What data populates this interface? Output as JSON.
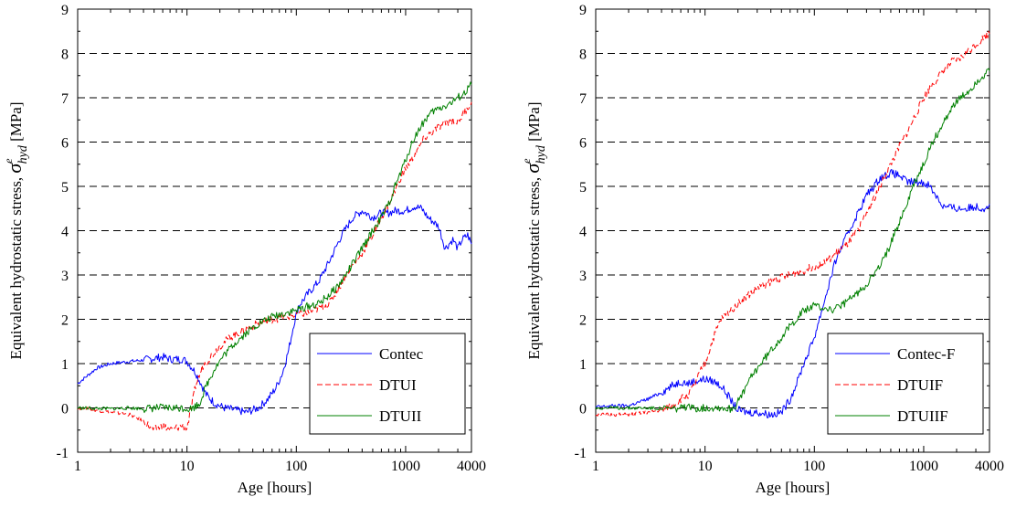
{
  "chart_data": [
    {
      "type": "line",
      "xscale": "log",
      "xlim": [
        1,
        4000
      ],
      "ylim": [
        -1,
        9
      ],
      "xticks": [
        "1",
        "10",
        "100",
        "1000",
        "4000"
      ],
      "yticks": [
        "-1",
        "0",
        "1",
        "2",
        "3",
        "4",
        "5",
        "6",
        "7",
        "8",
        "9"
      ],
      "xlabel": "Age [hours]",
      "ylabel": {
        "main": "Equivalent hydrostatic stress,",
        "symbol": "σ",
        "sup": "e",
        "sub": "hyd",
        "unit": "[MPa]"
      },
      "grid": "horizontal-dashed",
      "legend": "bottom-right",
      "series": [
        {
          "name": "Contec",
          "color": "#0000ff",
          "dash": "solid",
          "points": [
            [
              1,
              0.55
            ],
            [
              1.5,
              0.9
            ],
            [
              2,
              1.0
            ],
            [
              3,
              1.05
            ],
            [
              4,
              1.08
            ],
            [
              5,
              1.12
            ],
            [
              6,
              1.15
            ],
            [
              7,
              1.1
            ],
            [
              8,
              1.1
            ],
            [
              9,
              1.1
            ],
            [
              10,
              1.05
            ],
            [
              12,
              0.8
            ],
            [
              15,
              0.3
            ],
            [
              18,
              0.1
            ],
            [
              22,
              0.0
            ],
            [
              28,
              -0.05
            ],
            [
              35,
              -0.1
            ],
            [
              45,
              0.0
            ],
            [
              55,
              0.2
            ],
            [
              65,
              0.45
            ],
            [
              75,
              0.8
            ],
            [
              85,
              1.3
            ],
            [
              95,
              1.9
            ],
            [
              105,
              2.3
            ],
            [
              130,
              2.6
            ],
            [
              160,
              2.85
            ],
            [
              200,
              3.3
            ],
            [
              260,
              3.9
            ],
            [
              330,
              4.3
            ],
            [
              400,
              4.45
            ],
            [
              500,
              4.3
            ],
            [
              600,
              4.4
            ],
            [
              700,
              4.4
            ],
            [
              800,
              4.45
            ],
            [
              1000,
              4.45
            ],
            [
              1200,
              4.55
            ],
            [
              1400,
              4.5
            ],
            [
              1600,
              4.3
            ],
            [
              2000,
              4.1
            ],
            [
              2300,
              3.6
            ],
            [
              2700,
              3.8
            ],
            [
              3000,
              3.6
            ],
            [
              3300,
              3.8
            ],
            [
              3700,
              3.9
            ],
            [
              4000,
              3.7
            ]
          ]
        },
        {
          "name": "DTUI",
          "color": "#ff0000",
          "dash": "dashed",
          "points": [
            [
              1,
              0.0
            ],
            [
              1.5,
              -0.05
            ],
            [
              2,
              -0.1
            ],
            [
              3,
              -0.15
            ],
            [
              4,
              -0.3
            ],
            [
              5,
              -0.5
            ],
            [
              6,
              -0.4
            ],
            [
              7,
              -0.5
            ],
            [
              8,
              -0.45
            ],
            [
              9,
              -0.4
            ],
            [
              10,
              -0.45
            ],
            [
              11,
              0.0
            ],
            [
              12,
              0.5
            ],
            [
              14,
              0.95
            ],
            [
              17,
              1.2
            ],
            [
              20,
              1.4
            ],
            [
              25,
              1.6
            ],
            [
              30,
              1.7
            ],
            [
              40,
              1.85
            ],
            [
              50,
              1.95
            ],
            [
              60,
              2.0
            ],
            [
              80,
              2.05
            ],
            [
              100,
              2.1
            ],
            [
              130,
              2.15
            ],
            [
              160,
              2.25
            ],
            [
              200,
              2.35
            ],
            [
              250,
              2.75
            ],
            [
              300,
              3.1
            ],
            [
              400,
              3.5
            ],
            [
              500,
              3.9
            ],
            [
              600,
              4.3
            ],
            [
              700,
              4.6
            ],
            [
              800,
              4.9
            ],
            [
              900,
              5.2
            ],
            [
              1000,
              5.4
            ],
            [
              1200,
              5.7
            ],
            [
              1500,
              6.1
            ],
            [
              1800,
              6.25
            ],
            [
              2200,
              6.4
            ],
            [
              2700,
              6.5
            ],
            [
              3000,
              6.45
            ],
            [
              3500,
              6.7
            ],
            [
              4000,
              6.9
            ]
          ]
        },
        {
          "name": "DTUII",
          "color": "#008000",
          "dash": "solid",
          "points": [
            [
              1,
              0.0
            ],
            [
              2,
              -0.02
            ],
            [
              3,
              0.0
            ],
            [
              4,
              -0.02
            ],
            [
              5,
              0.0
            ],
            [
              7,
              0.0
            ],
            [
              9,
              0.0
            ],
            [
              11,
              -0.02
            ],
            [
              13,
              0.1
            ],
            [
              15,
              0.5
            ],
            [
              18,
              0.9
            ],
            [
              22,
              1.2
            ],
            [
              27,
              1.45
            ],
            [
              35,
              1.7
            ],
            [
              45,
              1.9
            ],
            [
              60,
              2.05
            ],
            [
              80,
              2.15
            ],
            [
              100,
              2.2
            ],
            [
              130,
              2.3
            ],
            [
              160,
              2.35
            ],
            [
              200,
              2.55
            ],
            [
              250,
              2.8
            ],
            [
              300,
              3.1
            ],
            [
              400,
              3.6
            ],
            [
              500,
              4.0
            ],
            [
              600,
              4.3
            ],
            [
              700,
              4.6
            ],
            [
              800,
              5.0
            ],
            [
              900,
              5.3
            ],
            [
              1000,
              5.6
            ],
            [
              1200,
              6.1
            ],
            [
              1500,
              6.5
            ],
            [
              1800,
              6.7
            ],
            [
              2200,
              6.8
            ],
            [
              2700,
              6.9
            ],
            [
              3000,
              7.0
            ],
            [
              3500,
              7.1
            ],
            [
              4000,
              7.3
            ]
          ]
        }
      ]
    },
    {
      "type": "line",
      "xscale": "log",
      "xlim": [
        1,
        4000
      ],
      "ylim": [
        -1,
        9
      ],
      "xticks": [
        "1",
        "10",
        "100",
        "1000",
        "4000"
      ],
      "yticks": [
        "-1",
        "0",
        "1",
        "2",
        "3",
        "4",
        "5",
        "6",
        "7",
        "8",
        "9"
      ],
      "xlabel": "Age [hours]",
      "ylabel": {
        "main": "Equivalent hydrostatic stress,",
        "symbol": "σ",
        "sup": "e",
        "sub": "hyd",
        "unit": "[MPa]"
      },
      "grid": "horizontal-dashed",
      "legend": "bottom-right",
      "series": [
        {
          "name": "Contec-F",
          "color": "#0000ff",
          "dash": "solid",
          "points": [
            [
              1,
              0.02
            ],
            [
              1.5,
              0.05
            ],
            [
              2,
              0.05
            ],
            [
              3,
              0.2
            ],
            [
              4,
              0.35
            ],
            [
              5,
              0.5
            ],
            [
              6,
              0.6
            ],
            [
              7,
              0.55
            ],
            [
              8,
              0.6
            ],
            [
              10,
              0.65
            ],
            [
              12,
              0.6
            ],
            [
              14,
              0.5
            ],
            [
              16,
              0.3
            ],
            [
              18,
              0.1
            ],
            [
              20,
              -0.05
            ],
            [
              25,
              -0.1
            ],
            [
              30,
              -0.1
            ],
            [
              40,
              -0.15
            ],
            [
              50,
              -0.1
            ],
            [
              60,
              0.2
            ],
            [
              70,
              0.6
            ],
            [
              80,
              1.0
            ],
            [
              90,
              1.3
            ],
            [
              100,
              1.6
            ],
            [
              120,
              2.3
            ],
            [
              140,
              2.9
            ],
            [
              160,
              3.4
            ],
            [
              200,
              3.9
            ],
            [
              250,
              4.4
            ],
            [
              300,
              4.8
            ],
            [
              350,
              5.0
            ],
            [
              400,
              5.2
            ],
            [
              500,
              5.3
            ],
            [
              600,
              5.25
            ],
            [
              700,
              5.1
            ],
            [
              900,
              5.1
            ],
            [
              1100,
              5.05
            ],
            [
              1300,
              4.8
            ],
            [
              1500,
              4.55
            ],
            [
              2000,
              4.5
            ],
            [
              2500,
              4.5
            ],
            [
              3000,
              4.55
            ],
            [
              3500,
              4.5
            ],
            [
              4000,
              4.6
            ]
          ]
        },
        {
          "name": "DTUIF",
          "color": "#ff0000",
          "dash": "dashed",
          "points": [
            [
              1,
              -0.15
            ],
            [
              2,
              -0.15
            ],
            [
              3,
              -0.1
            ],
            [
              4,
              -0.05
            ],
            [
              5,
              0.05
            ],
            [
              6,
              0.2
            ],
            [
              7,
              0.3
            ],
            [
              8,
              0.5
            ],
            [
              9,
              0.8
            ],
            [
              10,
              1.0
            ],
            [
              12,
              1.6
            ],
            [
              14,
              2.0
            ],
            [
              17,
              2.2
            ],
            [
              20,
              2.35
            ],
            [
              25,
              2.55
            ],
            [
              30,
              2.7
            ],
            [
              40,
              2.85
            ],
            [
              50,
              2.95
            ],
            [
              60,
              3.0
            ],
            [
              80,
              3.1
            ],
            [
              100,
              3.2
            ],
            [
              130,
              3.3
            ],
            [
              160,
              3.5
            ],
            [
              200,
              3.7
            ],
            [
              250,
              4.0
            ],
            [
              300,
              4.4
            ],
            [
              400,
              5.0
            ],
            [
              500,
              5.5
            ],
            [
              600,
              5.9
            ],
            [
              700,
              6.2
            ],
            [
              800,
              6.5
            ],
            [
              1000,
              7.0
            ],
            [
              1200,
              7.3
            ],
            [
              1500,
              7.6
            ],
            [
              1800,
              7.8
            ],
            [
              2200,
              7.9
            ],
            [
              2700,
              8.1
            ],
            [
              3000,
              8.2
            ],
            [
              3500,
              8.35
            ],
            [
              4000,
              8.45
            ]
          ]
        },
        {
          "name": "DTUIIF",
          "color": "#008000",
          "dash": "solid",
          "points": [
            [
              1,
              0.0
            ],
            [
              2,
              0.0
            ],
            [
              3,
              0.0
            ],
            [
              5,
              -0.02
            ],
            [
              7,
              0.0
            ],
            [
              10,
              0.0
            ],
            [
              13,
              0.02
            ],
            [
              15,
              0.0
            ],
            [
              17,
              -0.02
            ],
            [
              19,
              0.05
            ],
            [
              22,
              0.3
            ],
            [
              25,
              0.6
            ],
            [
              30,
              0.9
            ],
            [
              40,
              1.3
            ],
            [
              50,
              1.6
            ],
            [
              60,
              1.85
            ],
            [
              70,
              2.05
            ],
            [
              80,
              2.2
            ],
            [
              100,
              2.3
            ],
            [
              130,
              2.25
            ],
            [
              150,
              2.2
            ],
            [
              200,
              2.4
            ],
            [
              250,
              2.6
            ],
            [
              300,
              2.8
            ],
            [
              400,
              3.2
            ],
            [
              500,
              3.7
            ],
            [
              600,
              4.2
            ],
            [
              700,
              4.6
            ],
            [
              800,
              5.0
            ],
            [
              1000,
              5.5
            ],
            [
              1200,
              6.0
            ],
            [
              1500,
              6.4
            ],
            [
              1800,
              6.8
            ],
            [
              2200,
              7.0
            ],
            [
              2700,
              7.2
            ],
            [
              3000,
              7.35
            ],
            [
              3500,
              7.5
            ],
            [
              4000,
              7.6
            ]
          ]
        }
      ]
    }
  ]
}
